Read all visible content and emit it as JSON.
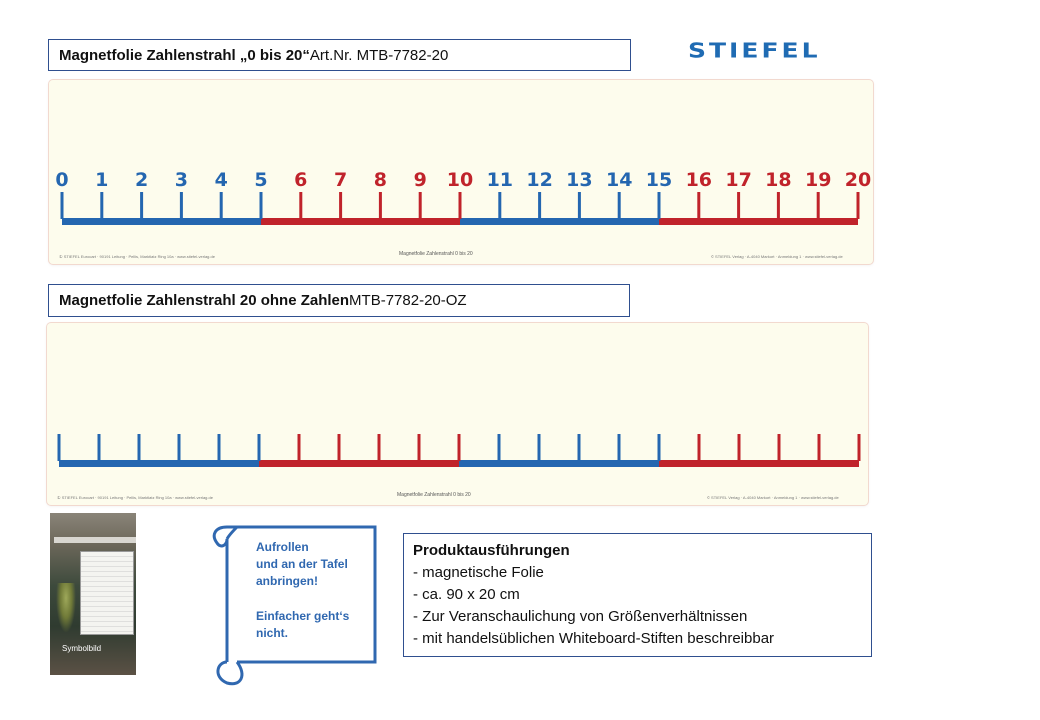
{
  "title1": {
    "bold": "Magnetfolie Zahlenstrahl „0 bis 20“",
    "normal": "Art.Nr. MTB-7782-20"
  },
  "title2": {
    "bold": "Magnetfolie Zahlenstrahl 20 ohne Zahlen",
    "normal": " MTB-7782-20-OZ"
  },
  "brand": "STIEFEL",
  "numberline1": {
    "labels": [
      "0",
      "1",
      "2",
      "3",
      "4",
      "5",
      "6",
      "7",
      "8",
      "9",
      "10",
      "11",
      "12",
      "13",
      "14",
      "15",
      "16",
      "17",
      "18",
      "19",
      "20"
    ],
    "colors": {
      "blue": "#2466b0",
      "red": "#c0232b"
    },
    "footer_left": "① STIEFEL Eurocart · 90191 Leitung · Pellis, Marktlatz Ring 10a · www.stiefel-verlag.de",
    "footer_center": "Magnetfolie Zahlenstrahl 0 bis 20",
    "footer_right": "© STIEFEL Verlag · A-4040 Markort · Anmeldung 1 · www.stiefel-verlag.de"
  },
  "numberline2": {
    "footer_left": "① STIEFEL Eurocart · 90191 Leitung · Pellis, Marktlatz Ring 10a · www.stiefel-verlag.de",
    "footer_center": "Magnetfolie Zahlenstrahl 0 bis 20",
    "footer_right": "© STIEFEL Verlag · A-4040 Markort · Anmeldung 1 · www.stiefel-verlag.de"
  },
  "photo": {
    "caption": "Symbolbild"
  },
  "scroll": {
    "line1": "Aufrollen",
    "line2": "und an der Tafel",
    "line3": "anbringen!",
    "line4": "Einfacher geht‘s",
    "line5": "nicht.",
    "color": "#3068b0"
  },
  "product": {
    "heading": "Produktausführungen",
    "items": [
      "- magnetische Folie",
      "- ca. 90 x 20 cm",
      "- Zur Veranschaulichung von  Größenverhältnissen",
      "- mit handelsüblichen Whiteboard-Stiften beschreibbar"
    ]
  }
}
